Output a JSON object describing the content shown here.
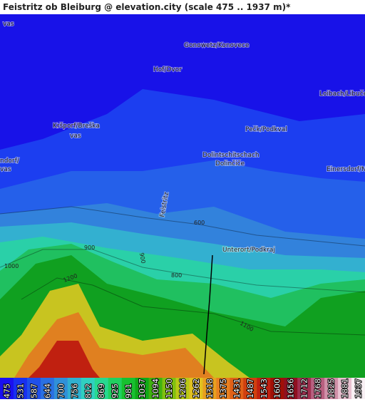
{
  "title": "Feistritz ob Bleiburg @ elevation.city (scale 475 .. 1937 m)*",
  "places": [
    {
      "label": "vas"
    },
    {
      "label": "Gonowetz/Konovece"
    },
    {
      "label": "Hof/Dvor"
    },
    {
      "label": "Loibach/Libuče"
    },
    {
      "label": "Kršporf/Breška"
    },
    {
      "label": "vas"
    },
    {
      "label": "Pečk/Podkval"
    },
    {
      "label": "Dolintschitschach"
    },
    {
      "label": "Dolinčiče"
    },
    {
      "label": "ndorf/"
    },
    {
      "label": "vas"
    },
    {
      "label": "Einersdorf/Nonča"
    },
    {
      "label": "Unterort/Podkraj"
    },
    {
      "label": "Feistritz"
    }
  ],
  "contour_labels": [
    "600",
    "900",
    "1000",
    "1200",
    "800",
    "900",
    "1100"
  ],
  "legend": [
    {
      "value": 475,
      "color": "#1a10f0"
    },
    {
      "value": 531,
      "color": "#1830f0"
    },
    {
      "value": 587,
      "color": "#2050ea"
    },
    {
      "value": 644,
      "color": "#2a70e2"
    },
    {
      "value": 700,
      "color": "#3090d8"
    },
    {
      "value": 756,
      "color": "#30b0d0"
    },
    {
      "value": 812,
      "color": "#30d0c0"
    },
    {
      "value": 869,
      "color": "#28d890"
    },
    {
      "value": 925,
      "color": "#20d060"
    },
    {
      "value": 981,
      "color": "#18c030"
    },
    {
      "value": 1037,
      "color": "#10a818"
    },
    {
      "value": 1094,
      "color": "#40b010"
    },
    {
      "value": 1150,
      "color": "#80c010"
    },
    {
      "value": 1206,
      "color": "#b8c818"
    },
    {
      "value": 1262,
      "color": "#e0c020"
    },
    {
      "value": 1318,
      "color": "#e8a020"
    },
    {
      "value": 1375,
      "color": "#e88020"
    },
    {
      "value": 1431,
      "color": "#e06018"
    },
    {
      "value": 1487,
      "color": "#d04010"
    },
    {
      "value": 1543,
      "color": "#c02010"
    },
    {
      "value": 1600,
      "color": "#a01008"
    },
    {
      "value": 1656,
      "color": "#901020"
    },
    {
      "value": 1712,
      "color": "#a03050"
    },
    {
      "value": 1768,
      "color": "#b86080"
    },
    {
      "value": 1825,
      "color": "#d090a8"
    },
    {
      "value": 1881,
      "color": "#e8c0d0"
    },
    {
      "value": 1937,
      "color": "#f8f0f4"
    }
  ]
}
